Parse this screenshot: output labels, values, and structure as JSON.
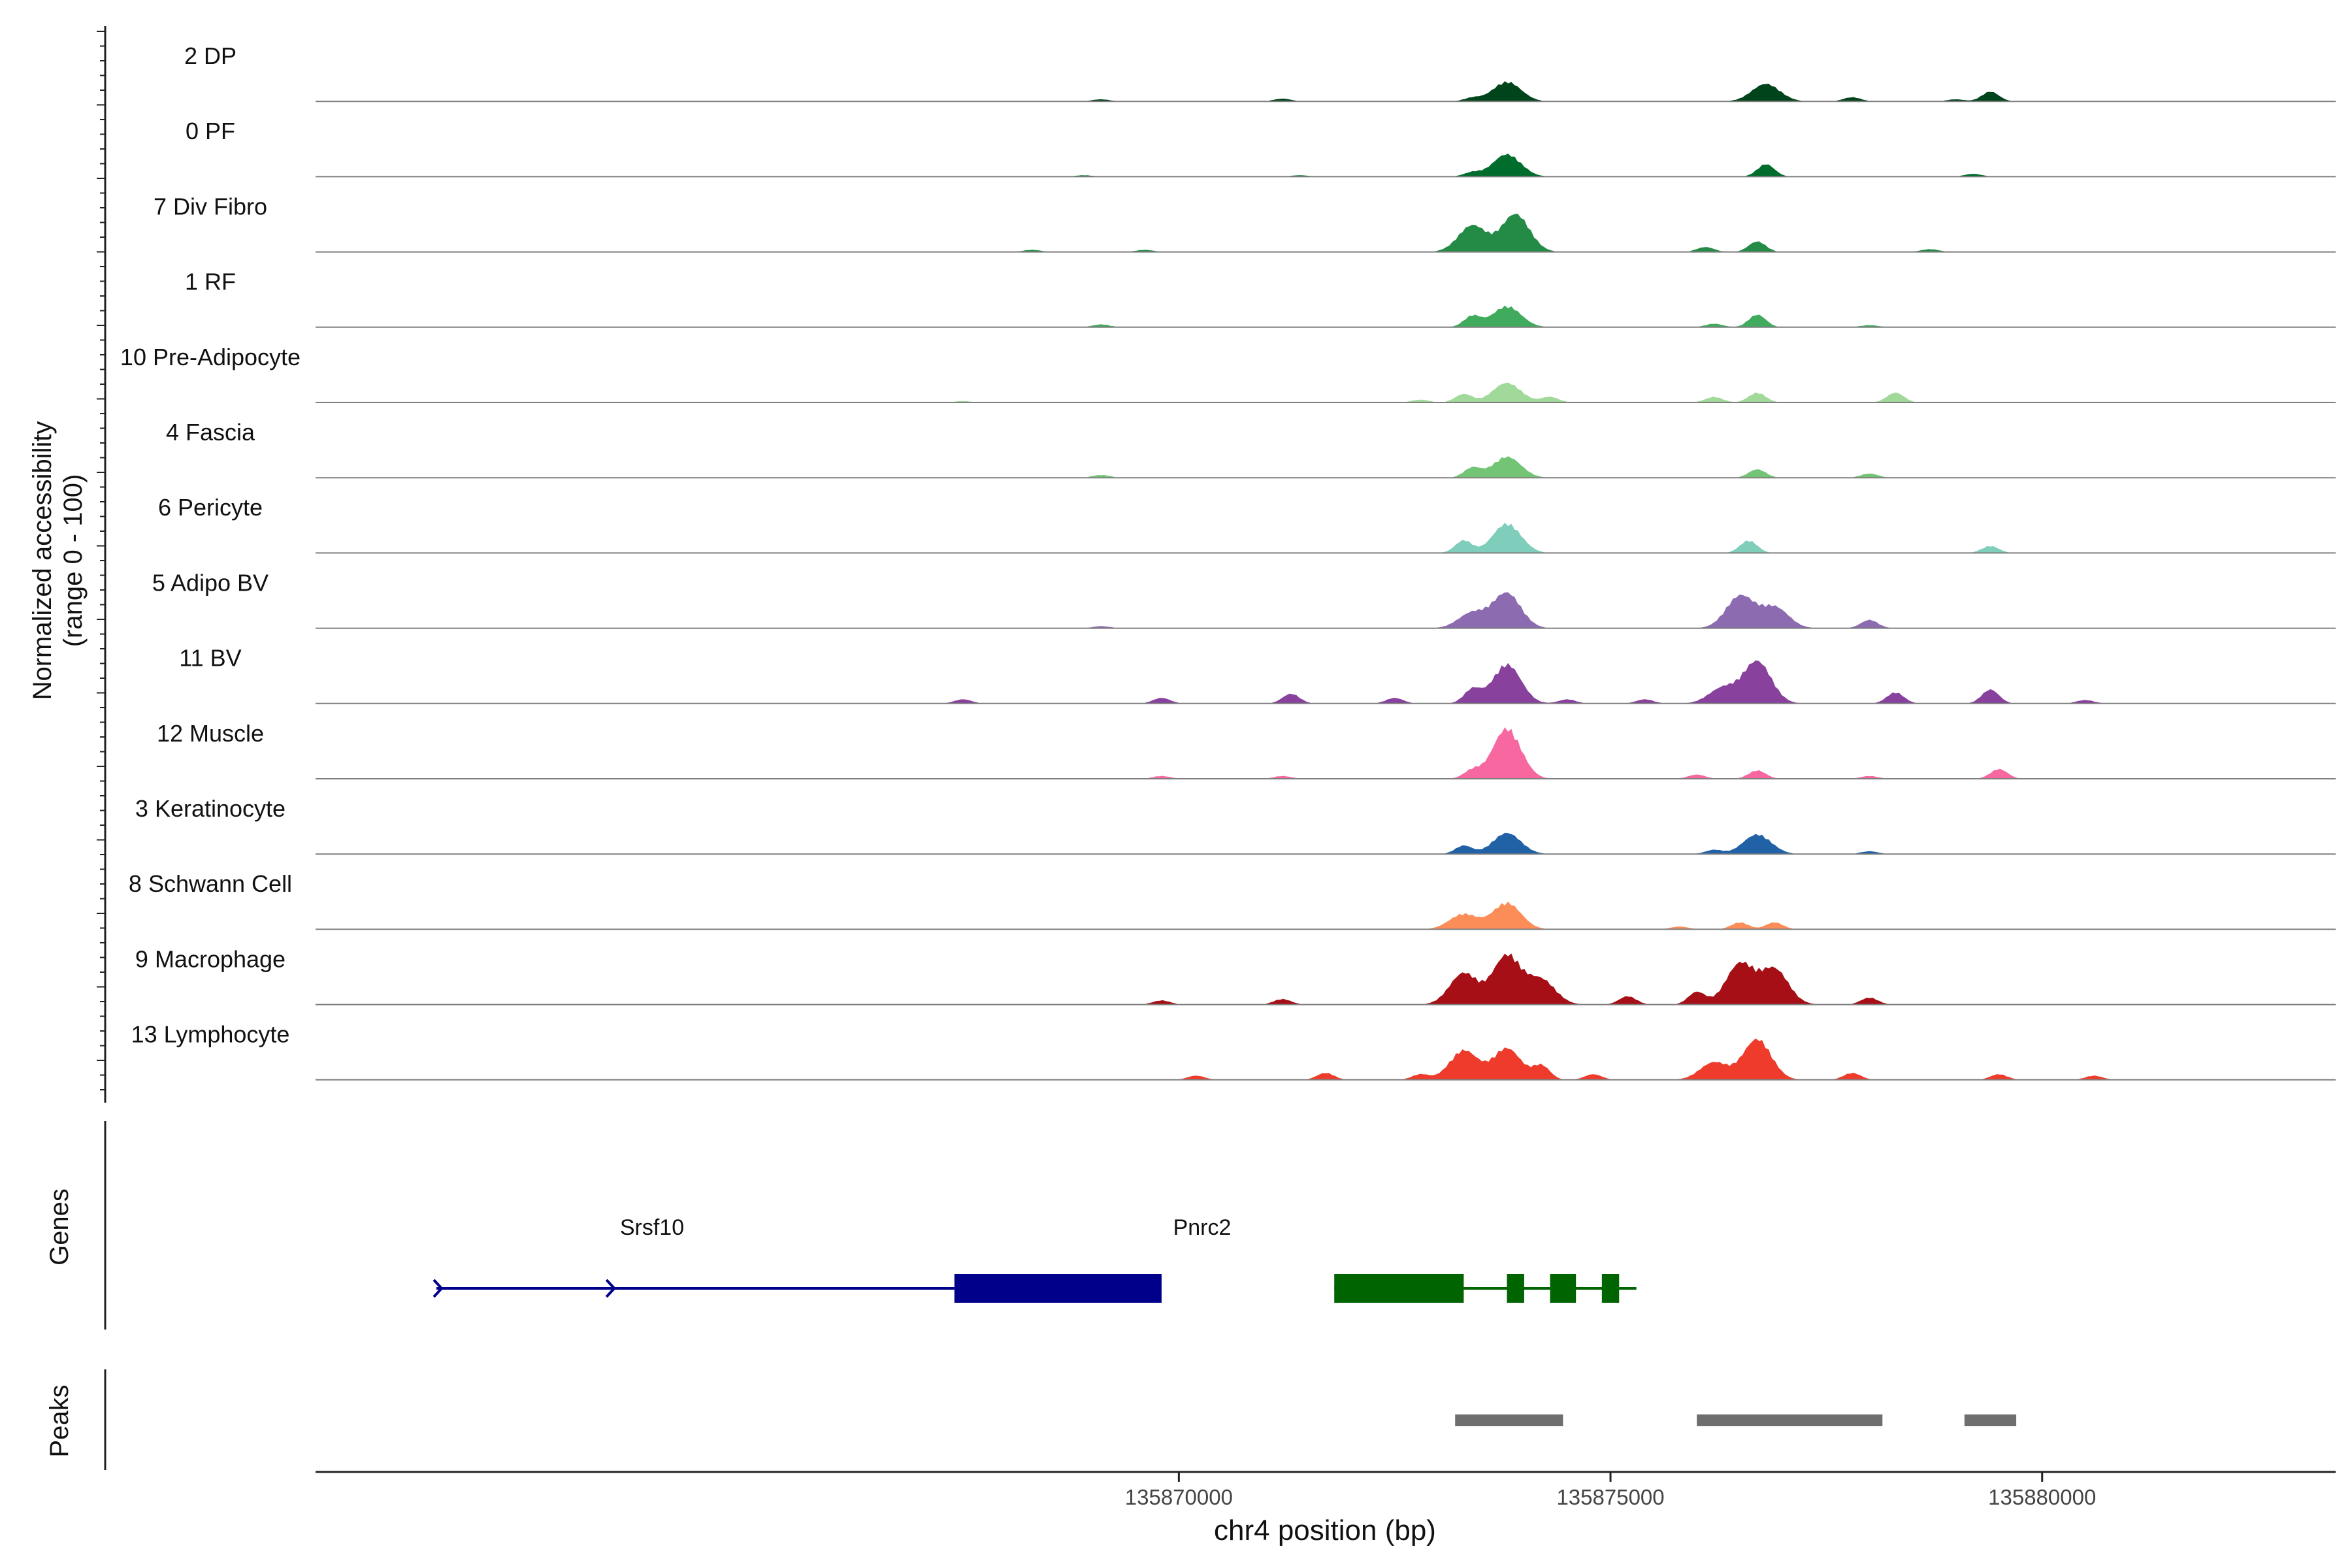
{
  "chart_data": {
    "type": "area",
    "title": "",
    "chromosome": "chr4",
    "xlabel": "chr4 position (bp)",
    "xlim": [
      135860000,
      135883400
    ],
    "xticks": [
      135870000,
      135875000,
      135880000
    ],
    "xtick_labels": [
      "135870000",
      "135875000",
      "135880000"
    ],
    "ylabel_line1": "Normalized accessibility",
    "ylabel_line2": "(range 0 - 100)",
    "ylim": [
      0,
      100
    ],
    "genes_panel_label": "Genes",
    "peaks_panel_label": "Peaks",
    "tracks": [
      {
        "name": "2 DP",
        "color": "#00441b",
        "peaks": [
          [
            135873800,
            28
          ],
          [
            135876800,
            25
          ],
          [
            135879400,
            14
          ],
          [
            135869100,
            3
          ],
          [
            135871200,
            4
          ],
          [
            135873400,
            5
          ],
          [
            135877800,
            6
          ],
          [
            135879000,
            3
          ]
        ]
      },
      {
        "name": "0 PF",
        "color": "#006d2c",
        "peaks": [
          [
            135873800,
            32
          ],
          [
            135876800,
            18
          ],
          [
            135879200,
            4
          ],
          [
            135873400,
            6
          ],
          [
            135868900,
            2
          ],
          [
            135871400,
            2
          ]
        ]
      },
      {
        "name": "7 Div Fibro",
        "color": "#238b45",
        "peaks": [
          [
            135873400,
            38
          ],
          [
            135873900,
            54
          ],
          [
            135876700,
            15
          ],
          [
            135876100,
            7
          ],
          [
            135878700,
            4
          ],
          [
            135868300,
            3
          ],
          [
            135869600,
            3
          ]
        ]
      },
      {
        "name": "1 RF",
        "color": "#41ab5d",
        "peaks": [
          [
            135873400,
            16
          ],
          [
            135873800,
            30
          ],
          [
            135876700,
            18
          ],
          [
            135876200,
            5
          ],
          [
            135869100,
            4
          ],
          [
            135878000,
            3
          ]
        ]
      },
      {
        "name": "10 Pre-Adipocyte",
        "color": "#a1d99b",
        "peaks": [
          [
            135873300,
            12
          ],
          [
            135873800,
            28
          ],
          [
            135874300,
            8
          ],
          [
            135876700,
            14
          ],
          [
            135876200,
            8
          ],
          [
            135878300,
            14
          ],
          [
            135872800,
            4
          ],
          [
            135867500,
            2
          ]
        ]
      },
      {
        "name": "4 Fascia",
        "color": "#74c476",
        "peaks": [
          [
            135873400,
            14
          ],
          [
            135873800,
            30
          ],
          [
            135876700,
            12
          ],
          [
            135878000,
            6
          ],
          [
            135869100,
            4
          ]
        ]
      },
      {
        "name": "6 Pericyte",
        "color": "#7fcdbb",
        "peaks": [
          [
            135873800,
            42
          ],
          [
            135873300,
            18
          ],
          [
            135876600,
            18
          ],
          [
            135879400,
            10
          ]
        ]
      },
      {
        "name": "5 Adipo BV",
        "color": "#8c6bb1",
        "peaks": [
          [
            135873400,
            22
          ],
          [
            135873800,
            50
          ],
          [
            135876500,
            46
          ],
          [
            135876900,
            30
          ],
          [
            135878000,
            12
          ],
          [
            135869100,
            3
          ]
        ]
      },
      {
        "name": "11 BV",
        "color": "#88419d",
        "peaks": [
          [
            135873800,
            56
          ],
          [
            135873400,
            20
          ],
          [
            135876700,
            60
          ],
          [
            135876300,
            22
          ],
          [
            135878300,
            16
          ],
          [
            135879400,
            20
          ],
          [
            135871300,
            14
          ],
          [
            135869800,
            8
          ],
          [
            135872500,
            8
          ],
          [
            135867500,
            6
          ],
          [
            135880500,
            5
          ],
          [
            135874500,
            6
          ],
          [
            135875400,
            6
          ]
        ]
      },
      {
        "name": "12 Muscle",
        "color": "#f768a1",
        "peaks": [
          [
            135873800,
            72
          ],
          [
            135873400,
            12
          ],
          [
            135876700,
            12
          ],
          [
            135876000,
            6
          ],
          [
            135879500,
            14
          ],
          [
            135878000,
            4
          ],
          [
            135869800,
            4
          ],
          [
            135871200,
            4
          ]
        ]
      },
      {
        "name": "3 Keratinocyte",
        "color": "#2161a6",
        "peaks": [
          [
            135873800,
            30
          ],
          [
            135873300,
            12
          ],
          [
            135876700,
            28
          ],
          [
            135876200,
            6
          ],
          [
            135878000,
            4
          ]
        ]
      },
      {
        "name": "8 Schwann Cell",
        "color": "#fc8d59",
        "peaks": [
          [
            135873800,
            38
          ],
          [
            135873300,
            22
          ],
          [
            135876500,
            10
          ],
          [
            135876900,
            10
          ],
          [
            135875800,
            4
          ]
        ]
      },
      {
        "name": "9 Macrophage",
        "color": "#a50f15",
        "peaks": [
          [
            135873300,
            45
          ],
          [
            135873800,
            70
          ],
          [
            135874200,
            35
          ],
          [
            135876500,
            58
          ],
          [
            135876900,
            50
          ],
          [
            135876000,
            18
          ],
          [
            135875200,
            12
          ],
          [
            135878000,
            10
          ],
          [
            135871200,
            8
          ],
          [
            135869800,
            6
          ]
        ]
      },
      {
        "name": "13 Lymphocyte",
        "color": "#ef3b2c",
        "peaks": [
          [
            135873300,
            42
          ],
          [
            135873800,
            45
          ],
          [
            135874200,
            20
          ],
          [
            135876700,
            58
          ],
          [
            135876200,
            25
          ],
          [
            135871700,
            10
          ],
          [
            135870200,
            6
          ],
          [
            135872800,
            8
          ],
          [
            135874800,
            8
          ],
          [
            135877800,
            10
          ],
          [
            135879500,
            8
          ],
          [
            135880600,
            6
          ]
        ]
      }
    ],
    "genes": [
      {
        "name": "Srsf10",
        "color": "#00008b",
        "line_start": 135861400,
        "line_end": 135867400,
        "exons": [
          [
            135867400,
            135869800
          ]
        ],
        "strand": "+",
        "arrows": [
          135861400,
          135863400
        ]
      },
      {
        "name": "Pnrc2",
        "color": "#006400",
        "line_start": 135871800,
        "line_end": 135875300,
        "exons": [
          [
            135871800,
            135873300
          ],
          [
            135873800,
            135874000
          ],
          [
            135874300,
            135874600
          ],
          [
            135874900,
            135875100
          ]
        ],
        "strand": "-"
      }
    ],
    "peak_regions": [
      [
        135873200,
        135874450
      ],
      [
        135876000,
        135878150
      ],
      [
        135879100,
        135879700
      ]
    ]
  }
}
